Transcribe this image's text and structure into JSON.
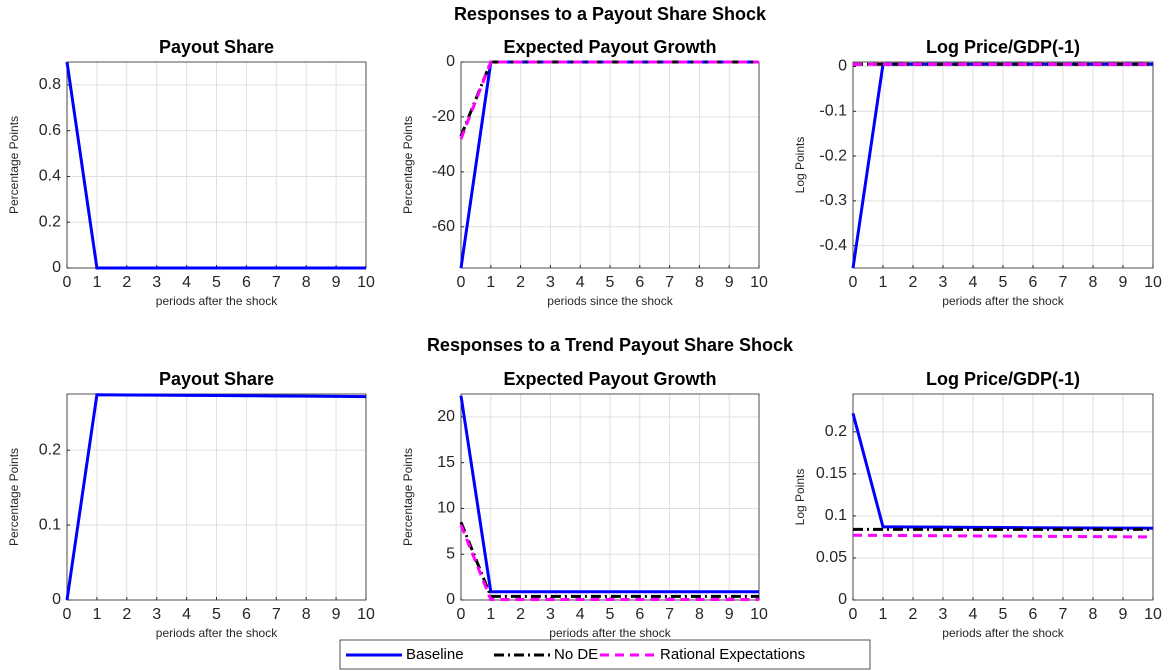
{
  "row_titles": [
    "Responses to a Payout Share Shock",
    "Responses to a Trend Payout Share Shock"
  ],
  "legend": {
    "location": "bottom",
    "entries": [
      {
        "name": "Baseline",
        "color": "#0000ff",
        "dash": "solid"
      },
      {
        "name": "No DE",
        "color": "#000000",
        "dash": "dashdot"
      },
      {
        "name": "Rational Expectations",
        "color": "#ff00ff",
        "dash": "dashed"
      }
    ]
  },
  "chart_data": [
    {
      "type": "line",
      "title": "Payout Share",
      "y_label": "Percentage Points",
      "x_label": "periods after the shock",
      "grid": true,
      "x": [
        0,
        1,
        2,
        3,
        4,
        5,
        6,
        7,
        8,
        9,
        10
      ],
      "xlim": [
        0,
        10
      ],
      "xticks": [
        0,
        1,
        2,
        3,
        4,
        5,
        6,
        7,
        8,
        9,
        10
      ],
      "ylim": [
        0,
        0.9
      ],
      "yticks": [
        0,
        0.2,
        0.4,
        0.6,
        0.8
      ],
      "series": [
        {
          "values": [
            0.9,
            0,
            0,
            0,
            0,
            0,
            0,
            0,
            0,
            0,
            0
          ]
        }
      ]
    },
    {
      "type": "line",
      "title": "Expected Payout Growth",
      "y_label": "Percentage Points",
      "x_label": "periods since the shock",
      "grid": true,
      "x": [
        0,
        1,
        2,
        3,
        4,
        5,
        6,
        7,
        8,
        9,
        10
      ],
      "xlim": [
        0,
        10
      ],
      "xticks": [
        0,
        1,
        2,
        3,
        4,
        5,
        6,
        7,
        8,
        9,
        10
      ],
      "ylim": [
        -75,
        0
      ],
      "yticks": [
        -60,
        -40,
        -20,
        0
      ],
      "series": [
        {
          "values": [
            -75,
            0,
            0,
            0,
            0,
            0,
            0,
            0,
            0,
            0,
            0
          ]
        },
        {
          "values": [
            -27,
            0,
            0,
            0,
            0,
            0,
            0,
            0,
            0,
            0,
            0
          ]
        },
        {
          "values": [
            -28,
            0,
            0,
            0,
            0,
            0,
            0,
            0,
            0,
            0,
            0
          ]
        }
      ]
    },
    {
      "type": "line",
      "title": "Log Price/GDP(-1)",
      "y_label": "Log Points",
      "x_label": "periods after the shock",
      "grid": true,
      "x": [
        0,
        1,
        2,
        3,
        4,
        5,
        6,
        7,
        8,
        9,
        10
      ],
      "xlim": [
        0,
        10
      ],
      "xticks": [
        0,
        1,
        2,
        3,
        4,
        5,
        6,
        7,
        8,
        9,
        10
      ],
      "ylim": [
        -0.45,
        0.01
      ],
      "yticks": [
        -0.4,
        -0.3,
        -0.2,
        -0.1,
        0
      ],
      "series": [
        {
          "values": [
            -0.45,
            0.005,
            0.005,
            0.005,
            0.005,
            0.005,
            0.005,
            0.005,
            0.005,
            0.005,
            0.005
          ]
        },
        {
          "values": [
            0.005,
            0.005,
            0.005,
            0.005,
            0.005,
            0.005,
            0.005,
            0.005,
            0.005,
            0.005,
            0.005
          ]
        },
        {
          "values": [
            0.005,
            0.005,
            0.005,
            0.005,
            0.005,
            0.005,
            0.005,
            0.005,
            0.005,
            0.005,
            0.005
          ]
        }
      ]
    },
    {
      "type": "line",
      "title": "Payout Share",
      "y_label": "Percentage Points",
      "x_label": "periods after the shock",
      "grid": true,
      "x": [
        0,
        1,
        2,
        3,
        4,
        5,
        6,
        7,
        8,
        9,
        10
      ],
      "xlim": [
        0,
        10
      ],
      "xticks": [
        0,
        1,
        2,
        3,
        4,
        5,
        6,
        7,
        8,
        9,
        10
      ],
      "ylim": [
        0,
        0.275
      ],
      "yticks": [
        0,
        0.1,
        0.2
      ],
      "series": [
        {
          "values": [
            0,
            0.274,
            0.2737,
            0.2735,
            0.2732,
            0.273,
            0.2727,
            0.2724,
            0.2721,
            0.2718,
            0.2715
          ]
        }
      ]
    },
    {
      "type": "line",
      "title": "Expected Payout Growth",
      "y_label": "Percentage Points",
      "x_label": "periods after the shock",
      "grid": true,
      "x": [
        0,
        1,
        2,
        3,
        4,
        5,
        6,
        7,
        8,
        9,
        10
      ],
      "xlim": [
        0,
        10
      ],
      "xticks": [
        0,
        1,
        2,
        3,
        4,
        5,
        6,
        7,
        8,
        9,
        10
      ],
      "ylim": [
        0,
        22.5
      ],
      "yticks": [
        0,
        5,
        10,
        15,
        20
      ],
      "series": [
        {
          "values": [
            22.3,
            0.9,
            0.9,
            0.9,
            0.9,
            0.9,
            0.9,
            0.9,
            0.9,
            0.9,
            0.9
          ]
        },
        {
          "values": [
            8.5,
            0.4,
            0.4,
            0.4,
            0.4,
            0.4,
            0.4,
            0.4,
            0.4,
            0.4,
            0.4
          ]
        },
        {
          "values": [
            8.2,
            0.05,
            0.05,
            0.05,
            0.05,
            0.05,
            0.05,
            0.05,
            0.05,
            0.05,
            0.05
          ]
        }
      ]
    },
    {
      "type": "line",
      "title": "Log Price/GDP(-1)",
      "y_label": "Log Points",
      "x_label": "periods after the shock",
      "grid": true,
      "x": [
        0,
        1,
        2,
        3,
        4,
        5,
        6,
        7,
        8,
        9,
        10
      ],
      "xlim": [
        0,
        10
      ],
      "xticks": [
        0,
        1,
        2,
        3,
        4,
        5,
        6,
        7,
        8,
        9,
        10
      ],
      "ylim": [
        0,
        0.245
      ],
      "yticks": [
        0,
        0.05,
        0.1,
        0.15,
        0.2
      ],
      "series": [
        {
          "values": [
            0.222,
            0.087,
            0.0868,
            0.0866,
            0.0864,
            0.0862,
            0.086,
            0.0858,
            0.0856,
            0.0855,
            0.0854
          ]
        },
        {
          "values": [
            0.084,
            0.084,
            0.084,
            0.084,
            0.084,
            0.084,
            0.084,
            0.084,
            0.084,
            0.084,
            0.084
          ]
        },
        {
          "values": [
            0.077,
            0.0768,
            0.0766,
            0.0764,
            0.0762,
            0.076,
            0.0758,
            0.0756,
            0.0754,
            0.0752,
            0.075
          ]
        }
      ]
    }
  ]
}
